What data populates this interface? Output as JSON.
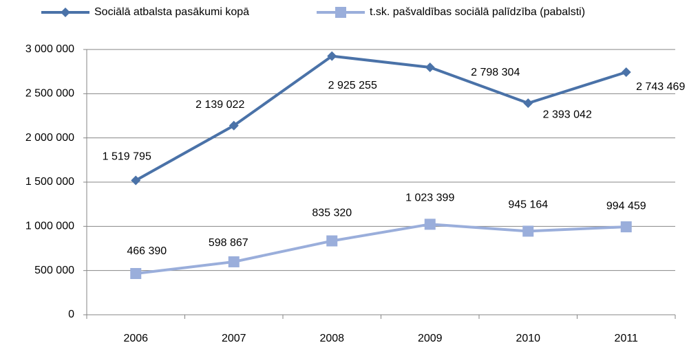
{
  "chart_data": {
    "type": "line",
    "categories": [
      "2006",
      "2007",
      "2008",
      "2009",
      "2010",
      "2011"
    ],
    "series": [
      {
        "name": "Sociālā atbalsta pasākumi kopā",
        "color": "#4a72a8",
        "marker": "diamond",
        "values": [
          1519795,
          2139022,
          2925255,
          2798304,
          2393042,
          2743469
        ],
        "value_labels": [
          "1 519 795",
          "2 139 022",
          "2 925 255",
          "2 798 304",
          "2 393 042",
          "2 743 469"
        ]
      },
      {
        "name": "t.sk. pašvaldības sociālā palīdzība (pabalsti)",
        "color": "#9aaedb",
        "marker": "square",
        "values": [
          466390,
          598867,
          835320,
          1023399,
          945164,
          994459
        ],
        "value_labels": [
          "466 390",
          "598 867",
          "835 320",
          "1 023 399",
          "945 164",
          "994 459"
        ]
      }
    ],
    "ylim": [
      0,
      3000000
    ],
    "yticks": [
      0,
      {
        "value": 500000,
        "label": "500 000"
      },
      {
        "value": 1000000,
        "label": "1 000 000"
      },
      {
        "value": 1500000,
        "label": "1 500 000"
      },
      {
        "value": 2000000,
        "label": "2 000 000"
      },
      {
        "value": 2500000,
        "label": "2 500 000"
      },
      {
        "value": 3000000,
        "label": "3 000 000"
      }
    ],
    "grid": true,
    "legend": "top"
  }
}
